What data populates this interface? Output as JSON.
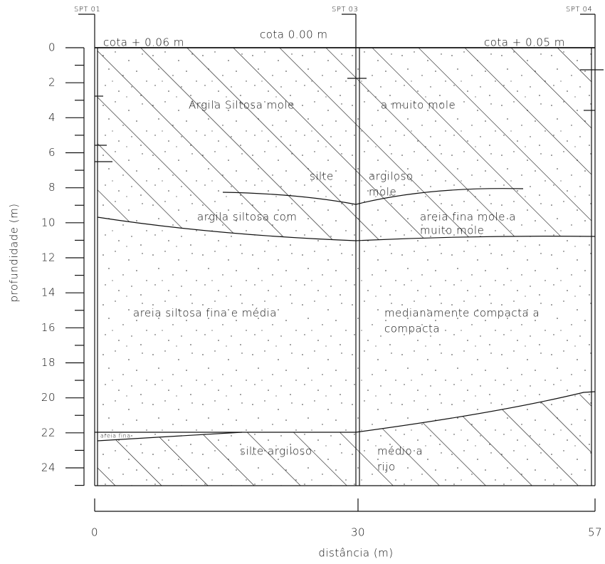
{
  "boreholes": [
    "SPT 01",
    "SPT 03",
    "SPT 04"
  ],
  "elevations": [
    "cota + 0.06 m",
    "cota 0.00 m",
    "cota + 0.05 m"
  ],
  "layer_labels": [
    "Argila Siltosa mole",
    "a muito mole",
    "silte",
    "argiloso",
    "mole",
    "argila siltosa com",
    "areia fina mole a",
    "muito mole",
    "areia siltosa fina e média",
    "medianamente compacta a",
    "compacta",
    "areia fina",
    "silte argiloso",
    "médio a",
    "rijo"
  ],
  "depth_axis": {
    "label": "profundidade (m)",
    "ticks": [
      0,
      2,
      4,
      6,
      8,
      10,
      12,
      14,
      16,
      18,
      20,
      22,
      24
    ]
  },
  "distance_axis": {
    "label": "distância (m)",
    "ticks": [
      0,
      30,
      57
    ]
  }
}
